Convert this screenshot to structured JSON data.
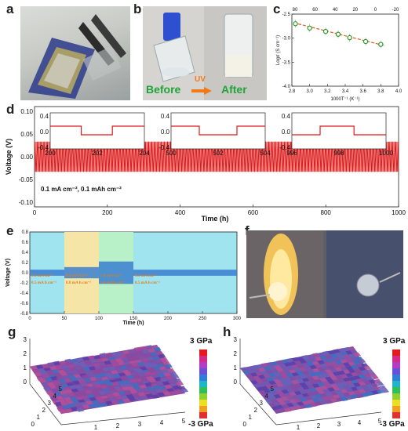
{
  "panels": {
    "a": {
      "label": "a"
    },
    "b": {
      "label": "b",
      "before": "Before",
      "uv": "UV",
      "after": "After"
    },
    "c": {
      "label": "c"
    },
    "d": {
      "label": "d"
    },
    "e": {
      "label": "e"
    },
    "f": {
      "label": "f"
    },
    "g": {
      "label": "g"
    },
    "h": {
      "label": "h"
    }
  },
  "colors": {
    "red": "#dd1a1a",
    "green_text": "#1fa33a",
    "orange_arrow": "#f07a1a",
    "fit_line": "#e05a20",
    "marker": "#2a9a2a",
    "cyan": "#9fe4ef",
    "yellow": "#f5e6a8",
    "green_band": "#b8f0c8",
    "trace_blue": "#3a7fd0"
  },
  "chart_data": [
    {
      "id": "c",
      "type": "scatter",
      "xlabel": "1000T⁻¹ (K⁻¹)",
      "ylabel": "Logσ (S cm⁻¹)",
      "xlim": [
        2.8,
        4.0
      ],
      "ylim": [
        -4.0,
        -2.5
      ],
      "xticks": [
        "2.8",
        "3.0",
        "3.2",
        "3.4",
        "3.6",
        "3.8",
        "4.0"
      ],
      "yticks": [
        "-2.5",
        "-3.0",
        "-3.5",
        "-4.0"
      ],
      "top_ticks": [
        "80",
        "60",
        "40",
        "20",
        "0",
        "-20"
      ],
      "x": [
        2.84,
        3.0,
        3.18,
        3.32,
        3.45,
        3.63,
        3.8
      ],
      "y": [
        -2.7,
        -2.79,
        -2.86,
        -2.92,
        -2.99,
        -3.07,
        -3.13
      ],
      "fit": {
        "x": [
          2.82,
          3.85
        ],
        "y": [
          -2.68,
          -3.16
        ]
      }
    },
    {
      "id": "d",
      "type": "line",
      "xlabel": "Time (h)",
      "ylabel": "Voltage (V)",
      "xlim": [
        0,
        1000
      ],
      "ylim": [
        -0.1,
        0.1
      ],
      "xticks": [
        "0",
        "200",
        "400",
        "600",
        "800",
        "1000"
      ],
      "yticks": [
        "0.10",
        "0.05",
        "0.00",
        "-0.05",
        "-0.10"
      ],
      "annotation": "0.1 mA cm⁻², 0.1 mAh cm⁻²",
      "series_amplitude": 0.03,
      "insets": [
        {
          "xticks": [
            "200",
            "202",
            "204"
          ],
          "yticks": [
            "0.4",
            "0.0",
            "-0.4"
          ]
        },
        {
          "xticks": [
            "500",
            "502",
            "504"
          ],
          "yticks": [
            "0.4",
            "0.0",
            "-0.4"
          ]
        },
        {
          "xticks": [
            "996",
            "998",
            "1000"
          ],
          "yticks": [
            "0.4",
            "0.0",
            "-0.4"
          ]
        }
      ]
    },
    {
      "id": "e",
      "type": "line",
      "xlabel": "Time (h)",
      "ylabel": "Voltage (V)",
      "xlim": [
        0,
        300
      ],
      "ylim": [
        -0.8,
        0.8
      ],
      "xticks": [
        "0",
        "50",
        "100",
        "150",
        "200",
        "250",
        "300"
      ],
      "yticks": [
        "0.8",
        "0.6",
        "0.4",
        "0.2",
        "0.0",
        "-0.2",
        "-0.4",
        "-0.6",
        "-0.8"
      ],
      "segments": [
        {
          "x": [
            0,
            50
          ],
          "amp": 0.06,
          "label1": "0.5 mA cm⁻²",
          "label2": "0.5 mA h cm⁻²"
        },
        {
          "x": [
            50,
            100
          ],
          "amp": 0.11,
          "label1": "0.8 mA cm⁻²",
          "label2": "0.8 mA h cm⁻²"
        },
        {
          "x": [
            100,
            150
          ],
          "amp": 0.22,
          "label1": "1.0 mA cm⁻²",
          "label2": "1.0 mA h cm⁻²"
        },
        {
          "x": [
            150,
            300
          ],
          "amp": 0.06,
          "label1": "0.5 mA cm⁻²",
          "label2": "0.5 mA h cm⁻²"
        }
      ]
    },
    {
      "id": "g",
      "type": "heatmap",
      "colorbar_top": "3 GPa",
      "colorbar_bottom": "-3 GPa",
      "xticks": [
        "1",
        "2",
        "3",
        "4",
        "5"
      ],
      "yticks": [
        "0",
        "1",
        "2",
        "3",
        "4",
        "5"
      ],
      "zticks": [
        "3",
        "2",
        "1",
        "0"
      ]
    },
    {
      "id": "h",
      "type": "heatmap",
      "colorbar_top": "3 GPa",
      "colorbar_bottom": "-3 GPa",
      "xticks": [
        "1",
        "2",
        "3",
        "4",
        "5"
      ],
      "yticks": [
        "0",
        "1",
        "2",
        "3",
        "4",
        "5"
      ],
      "zticks": [
        "3",
        "2",
        "1",
        "0"
      ]
    }
  ]
}
